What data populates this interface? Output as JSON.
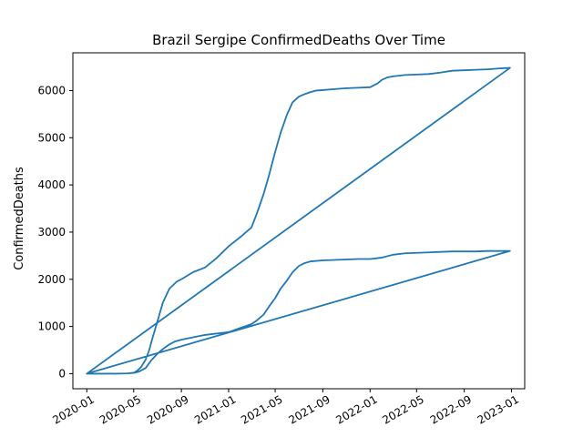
{
  "chart_data": {
    "type": "line",
    "title": "Brazil Sergipe ConfirmedDeaths Over Time",
    "xlabel": "",
    "ylabel": "ConfirmedDeaths",
    "grid": false,
    "x_ticks": [
      "2020-01",
      "2020-05",
      "2020-09",
      "2021-01",
      "2021-05",
      "2021-09",
      "2022-01",
      "2022-05",
      "2022-09",
      "2023-01"
    ],
    "y_ticks": [
      0,
      1000,
      2000,
      3000,
      4000,
      5000,
      6000
    ],
    "xlim": [
      "2019-11-26",
      "2023-02-04"
    ],
    "ylim": [
      -320,
      6800
    ],
    "series": [
      {
        "color": "#1f77b4",
        "x": [
          "2020-01-01",
          "2020-03-15",
          "2020-04-15",
          "2020-05-01",
          "2020-05-10",
          "2020-05-20",
          "2020-06-01",
          "2020-06-10",
          "2020-06-20",
          "2020-07-01",
          "2020-07-15",
          "2020-08-01",
          "2020-08-20",
          "2020-09-01",
          "2020-10-01",
          "2020-11-01",
          "2020-12-01",
          "2021-01-01",
          "2021-02-01",
          "2021-03-01",
          "2021-03-15",
          "2021-04-01",
          "2021-04-15",
          "2021-05-01",
          "2021-05-15",
          "2021-06-01",
          "2021-06-15",
          "2021-07-01",
          "2021-07-15",
          "2021-08-01",
          "2021-08-15",
          "2021-09-01",
          "2021-10-01",
          "2021-11-01",
          "2021-12-01",
          "2022-01-01",
          "2022-01-20",
          "2022-02-01",
          "2022-02-15",
          "2022-03-01",
          "2022-04-01",
          "2022-05-01",
          "2022-06-01",
          "2022-07-01",
          "2022-08-01",
          "2022-09-01",
          "2022-10-01",
          "2022-11-01",
          "2022-12-01",
          "2022-12-28",
          "2020-01-01",
          "2020-03-15",
          "2020-04-15",
          "2020-05-01",
          "2020-05-15",
          "2020-06-01",
          "2020-06-15",
          "2020-07-01",
          "2020-07-15",
          "2020-08-01",
          "2020-08-15",
          "2020-09-01",
          "2020-10-01",
          "2020-11-01",
          "2020-12-01",
          "2021-01-01",
          "2021-01-15",
          "2021-02-01",
          "2021-03-01",
          "2021-03-15",
          "2021-04-01",
          "2021-04-15",
          "2021-05-01",
          "2021-05-15",
          "2021-06-01",
          "2021-06-15",
          "2021-07-01",
          "2021-07-15",
          "2021-08-01",
          "2021-09-01",
          "2021-10-01",
          "2021-11-01",
          "2021-12-01",
          "2022-01-01",
          "2022-02-01",
          "2022-03-01",
          "2022-04-01",
          "2022-05-01",
          "2022-06-01",
          "2022-07-01",
          "2022-08-01",
          "2022-09-01",
          "2022-10-01",
          "2022-11-01",
          "2022-12-01",
          "2022-12-28",
          "2020-01-01"
        ],
        "y": [
          0,
          0,
          5,
          20,
          60,
          140,
          300,
          500,
          800,
          1100,
          1500,
          1800,
          1950,
          2000,
          2150,
          2250,
          2450,
          2700,
          2900,
          3100,
          3400,
          3800,
          4200,
          4700,
          5100,
          5500,
          5750,
          5870,
          5920,
          5970,
          6000,
          6010,
          6030,
          6050,
          6060,
          6070,
          6150,
          6230,
          6280,
          6300,
          6330,
          6340,
          6350,
          6380,
          6420,
          6430,
          6440,
          6450,
          6470,
          6480,
          0,
          0,
          5,
          15,
          45,
          120,
          280,
          420,
          520,
          620,
          680,
          720,
          770,
          820,
          850,
          880,
          920,
          970,
          1050,
          1130,
          1250,
          1420,
          1600,
          1800,
          1980,
          2150,
          2280,
          2340,
          2380,
          2400,
          2410,
          2420,
          2430,
          2430,
          2460,
          2520,
          2550,
          2560,
          2570,
          2580,
          2590,
          2590,
          2590,
          2600,
          2600,
          2600,
          0
        ]
      }
    ]
  }
}
